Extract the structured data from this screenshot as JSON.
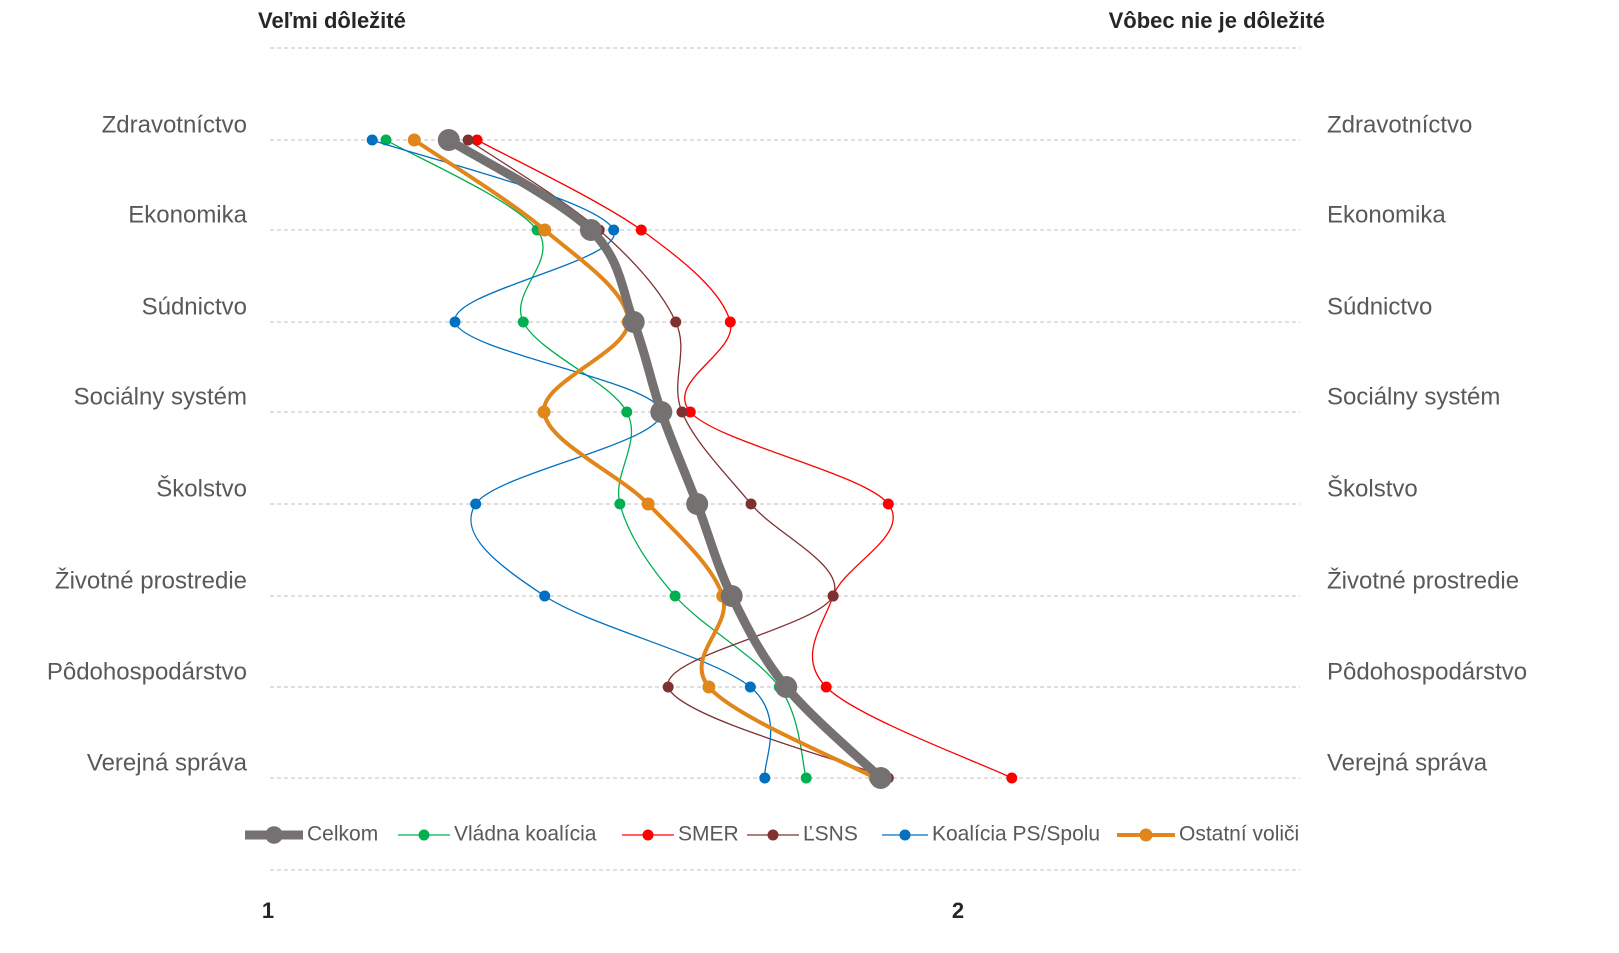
{
  "chart_data": {
    "type": "line",
    "left_label": "Veľmi dôležité",
    "right_label": "Vôbec nie je dôležité",
    "categories": [
      "Zdravotníctvo",
      "Ekonomika",
      "Súdnictvo",
      "Sociálny systém",
      "Školstvo",
      "Životné prostredie",
      "Pôdohospodárstvo",
      "Verejná správa"
    ],
    "xlim": [
      1,
      2.5
    ],
    "xticks": [
      1,
      2
    ],
    "series": [
      {
        "name": "Celkom",
        "color": "#767171",
        "values": [
          1.262,
          1.468,
          1.53,
          1.57,
          1.622,
          1.672,
          1.751,
          1.888
        ]
      },
      {
        "name": "Vládna koalícia",
        "color": "#00b050",
        "values": [
          1.171,
          1.39,
          1.37,
          1.52,
          1.51,
          1.59,
          1.741,
          1.78
        ]
      },
      {
        "name": "SMER",
        "color": "#ff0000",
        "values": [
          1.303,
          1.541,
          1.67,
          1.612,
          1.899,
          1.819,
          1.809,
          2.078
        ]
      },
      {
        "name": "ĽSNS",
        "color": "#7f3030",
        "values": [
          1.29,
          1.48,
          1.591,
          1.6,
          1.7,
          1.819,
          1.58,
          1.899
        ]
      },
      {
        "name": "Koalícia PS/Spolu",
        "color": "#0070c0",
        "values": [
          1.151,
          1.501,
          1.271,
          1.57,
          1.301,
          1.401,
          1.699,
          1.72
        ]
      },
      {
        "name": "Ostatní voliči",
        "color": "#e0861a",
        "values": [
          1.212,
          1.401,
          1.522,
          1.4,
          1.551,
          1.659,
          1.639,
          1.88
        ]
      }
    ]
  }
}
